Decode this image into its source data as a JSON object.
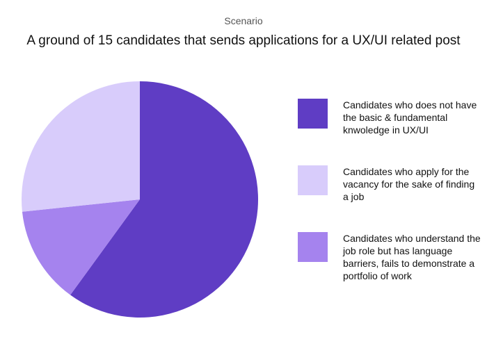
{
  "chart_data": {
    "type": "pie",
    "subtitle": "Scenario",
    "title": "A ground of 15 candidates that sends applications for a UX/UI related post",
    "slices": [
      {
        "label": "Candidates who does not have the basic & fundamental knwoledge in UX/UI",
        "value": 9,
        "color": "#5f3dc4"
      },
      {
        "label": "Candidates who understand the job role but has language barriers, fails to demonstrate a portfolio of work",
        "value": 2,
        "color": "#a583ee"
      },
      {
        "label": "Candidates who apply for the vacancy for the sake of finding a job",
        "value": 4,
        "color": "#d8ccfb"
      }
    ],
    "legend": [
      {
        "label": "Candidates who does not have the basic & fundamental knwoledge in UX/UI",
        "color": "#5f3dc4"
      },
      {
        "label": "Candidates who apply for the vacancy for the sake of finding a job",
        "color": "#d8ccfb"
      },
      {
        "label": "Candidates who understand the job role but has language barriers, fails to demonstrate a portfolio of work",
        "color": "#a583ee"
      }
    ],
    "legend_position": "right"
  }
}
